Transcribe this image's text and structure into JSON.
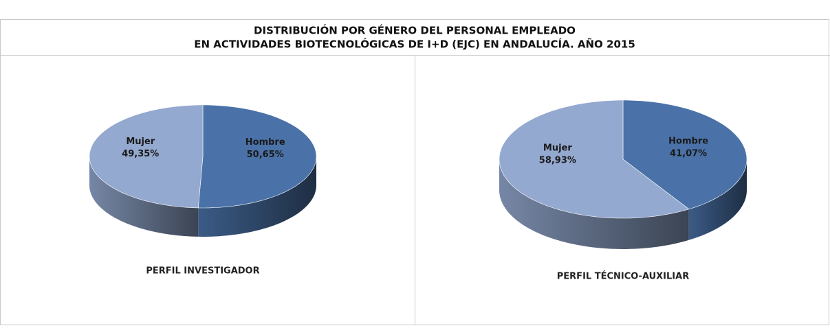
{
  "title": [
    "DISTRIBUCIÓN POR GÉNERO DEL PERSONAL EMPLEADO",
    "EN ACTIVIDADES BIOTECNOLÓGICAS DE I+D (EJC) EN ANDALUCÍA. AÑO 2015"
  ],
  "chart_data": [
    {
      "type": "pie",
      "title": "PERFIL INVESTIGADOR",
      "categories": [
        "Hombre",
        "Mujer"
      ],
      "values": [
        50.65,
        49.35
      ],
      "value_labels": [
        "50,65%",
        "49,35%"
      ],
      "colors": [
        "#4a72a8",
        "#94a9cf"
      ]
    },
    {
      "type": "pie",
      "title": "PERFIL TÉCNICO-AUXILIAR",
      "categories": [
        "Hombre",
        "Mujer"
      ],
      "values": [
        41.07,
        58.93
      ],
      "value_labels": [
        "41,07%",
        "58,93%"
      ],
      "colors": [
        "#4a72a8",
        "#94a9cf"
      ]
    }
  ]
}
